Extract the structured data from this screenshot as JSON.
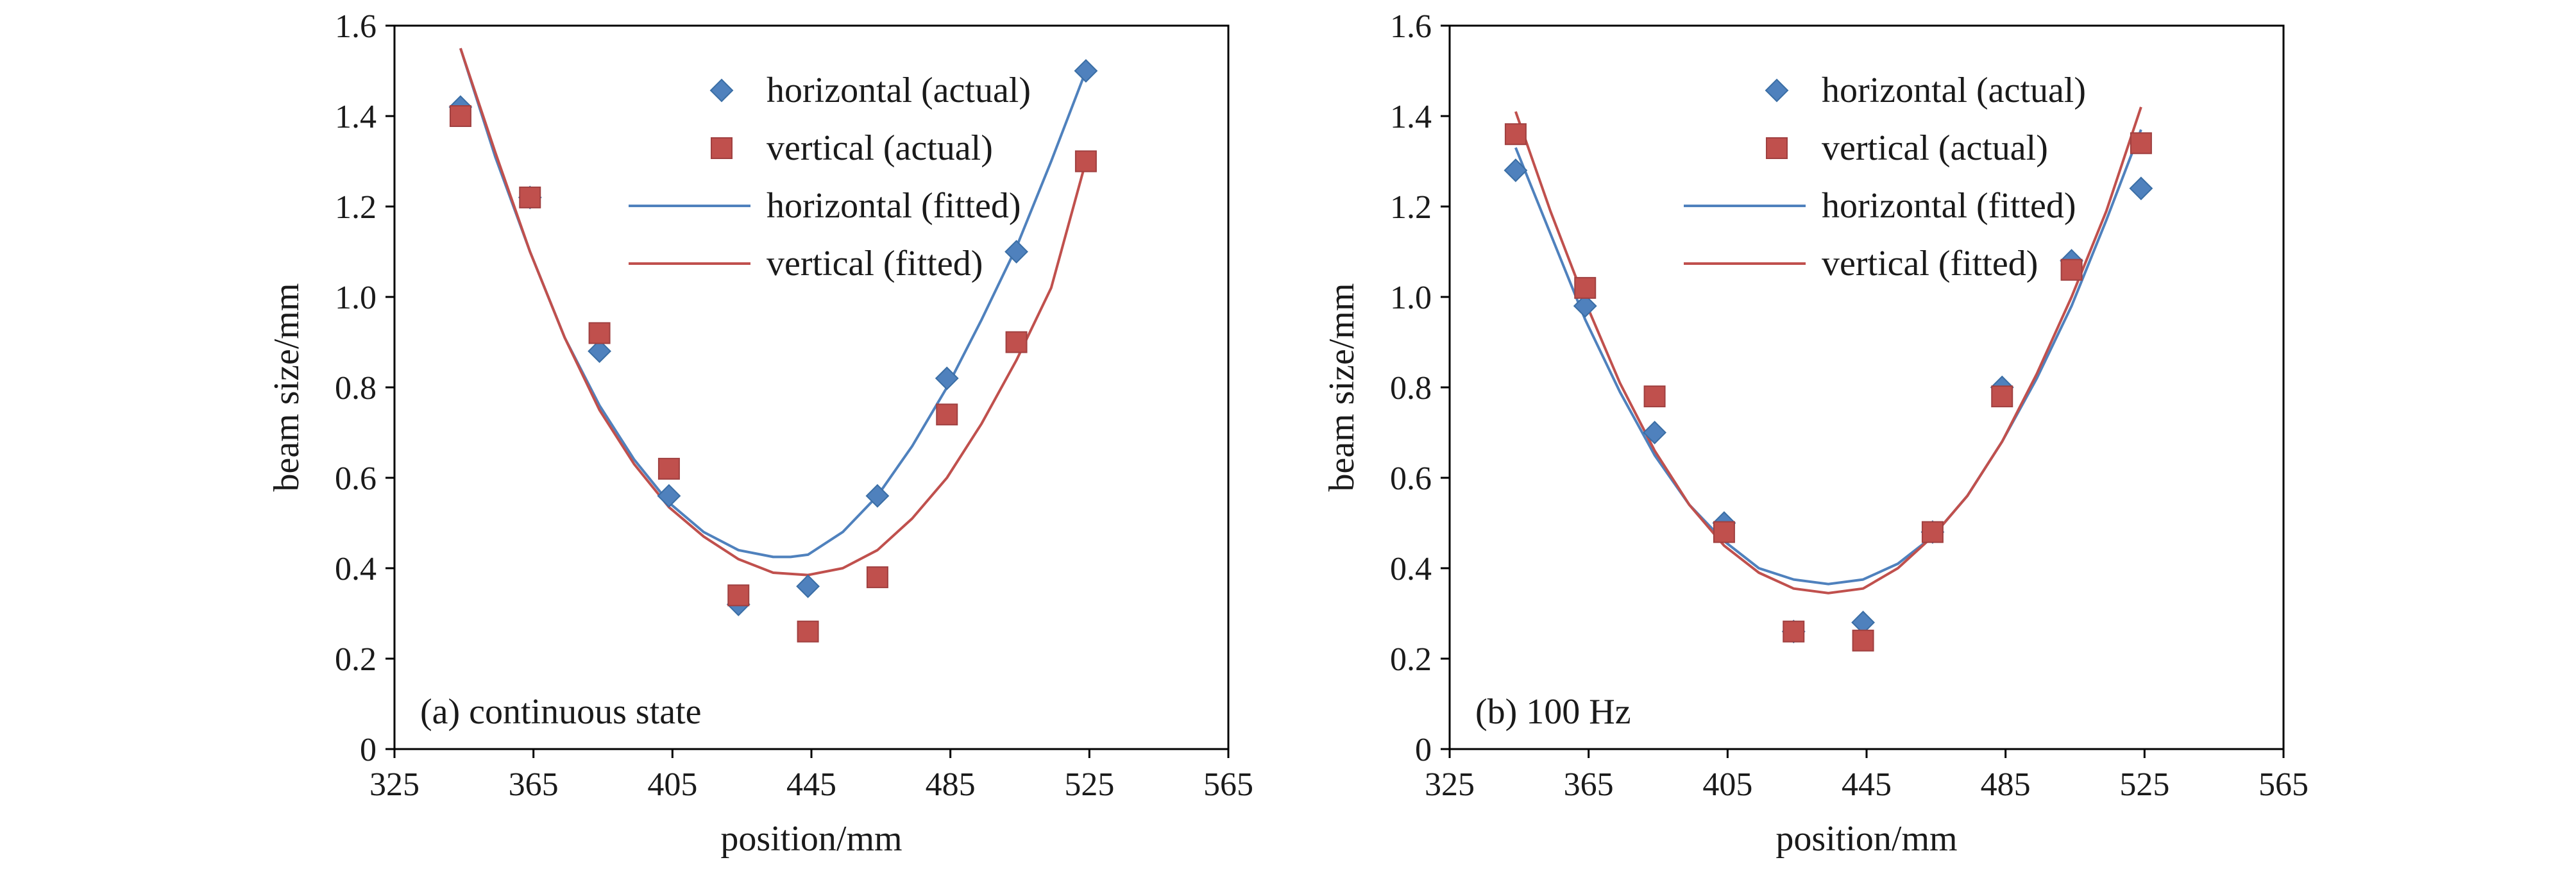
{
  "colors": {
    "horizontal": "#4F81BD",
    "vertical": "#C0504D",
    "horizontal_marker_edge": "#3A6EA5",
    "vertical_marker_edge": "#A04040",
    "frame": "#000000"
  },
  "chart_data": [
    {
      "type": "scatter",
      "panel_label": "(a) continuous state",
      "xlabel": "position/mm",
      "ylabel": "beam size/mm",
      "xlim": [
        325,
        565
      ],
      "ylim": [
        0,
        1.6
      ],
      "x_ticks": [
        "325",
        "365",
        "405",
        "445",
        "485",
        "525",
        "565"
      ],
      "y_ticks": [
        "0",
        "0.2",
        "0.4",
        "0.6",
        "0.8",
        "1.0",
        "1.2",
        "1.4",
        "1.6"
      ],
      "grid": false,
      "legend_position": "top-right",
      "series": [
        {
          "name": "horizontal (actual)",
          "kind": "markers",
          "marker": "diamond",
          "color": "#4F81BD",
          "x": [
            344,
            364,
            384,
            404,
            424,
            444,
            464,
            484,
            504,
            524
          ],
          "y": [
            1.42,
            1.22,
            0.88,
            0.56,
            0.32,
            0.36,
            0.56,
            0.82,
            1.1,
            1.5
          ]
        },
        {
          "name": "vertical (actual)",
          "kind": "markers",
          "marker": "square",
          "color": "#C0504D",
          "x": [
            344,
            364,
            384,
            404,
            424,
            444,
            464,
            484,
            504,
            524
          ],
          "y": [
            1.4,
            1.22,
            0.92,
            0.62,
            0.34,
            0.26,
            0.38,
            0.74,
            0.9,
            1.3
          ]
        },
        {
          "name": "horizontal (fitted)",
          "kind": "line",
          "color": "#4F81BD",
          "x": [
            344,
            354,
            364,
            374,
            384,
            394,
            404,
            414,
            424,
            434,
            439,
            444,
            454,
            464,
            474,
            484,
            494,
            504,
            514,
            524
          ],
          "y": [
            1.55,
            1.31,
            1.1,
            0.91,
            0.76,
            0.64,
            0.545,
            0.48,
            0.44,
            0.425,
            0.425,
            0.43,
            0.48,
            0.56,
            0.67,
            0.8,
            0.95,
            1.11,
            1.3,
            1.5
          ]
        },
        {
          "name": "vertical (fitted)",
          "kind": "line",
          "color": "#C0504D",
          "x": [
            344,
            354,
            364,
            374,
            384,
            394,
            404,
            414,
            424,
            434,
            444,
            454,
            464,
            474,
            484,
            494,
            504,
            514,
            524
          ],
          "y": [
            1.55,
            1.32,
            1.1,
            0.91,
            0.75,
            0.63,
            0.535,
            0.47,
            0.42,
            0.39,
            0.385,
            0.4,
            0.44,
            0.51,
            0.6,
            0.72,
            0.86,
            1.02,
            1.3
          ]
        }
      ]
    },
    {
      "type": "scatter",
      "panel_label": "(b) 100 Hz",
      "xlabel": "position/mm",
      "ylabel": "beam size/mm",
      "xlim": [
        325,
        565
      ],
      "ylim": [
        0,
        1.6
      ],
      "x_ticks": [
        "325",
        "365",
        "405",
        "445",
        "485",
        "525",
        "565"
      ],
      "y_ticks": [
        "0",
        "0.2",
        "0.4",
        "0.6",
        "0.8",
        "1.0",
        "1.2",
        "1.4",
        "1.6"
      ],
      "grid": false,
      "legend_position": "top-right",
      "series": [
        {
          "name": "horizontal (actual)",
          "kind": "markers",
          "marker": "diamond",
          "color": "#4F81BD",
          "x": [
            344,
            364,
            384,
            404,
            424,
            444,
            464,
            484,
            504,
            524
          ],
          "y": [
            1.28,
            0.98,
            0.7,
            0.5,
            0.26,
            0.28,
            0.48,
            0.8,
            1.08,
            1.24
          ]
        },
        {
          "name": "vertical (actual)",
          "kind": "markers",
          "marker": "square",
          "color": "#C0504D",
          "x": [
            344,
            364,
            384,
            404,
            424,
            444,
            464,
            484,
            504,
            524
          ],
          "y": [
            1.36,
            1.02,
            0.78,
            0.48,
            0.26,
            0.24,
            0.48,
            0.78,
            1.06,
            1.34
          ]
        },
        {
          "name": "horizontal (fitted)",
          "kind": "line",
          "color": "#4F81BD",
          "x": [
            344,
            354,
            364,
            374,
            384,
            394,
            404,
            414,
            424,
            434,
            444,
            454,
            464,
            474,
            484,
            494,
            504,
            514,
            524
          ],
          "y": [
            1.33,
            1.14,
            0.95,
            0.79,
            0.65,
            0.54,
            0.46,
            0.4,
            0.375,
            0.365,
            0.375,
            0.41,
            0.47,
            0.56,
            0.68,
            0.82,
            0.98,
            1.17,
            1.37
          ]
        },
        {
          "name": "vertical (fitted)",
          "kind": "line",
          "color": "#C0504D",
          "x": [
            344,
            354,
            364,
            374,
            384,
            394,
            404,
            414,
            424,
            434,
            444,
            454,
            464,
            474,
            484,
            494,
            504,
            514,
            524
          ],
          "y": [
            1.41,
            1.19,
            0.99,
            0.81,
            0.66,
            0.54,
            0.45,
            0.39,
            0.355,
            0.345,
            0.355,
            0.4,
            0.47,
            0.56,
            0.68,
            0.83,
            1.0,
            1.19,
            1.42
          ]
        }
      ]
    }
  ]
}
